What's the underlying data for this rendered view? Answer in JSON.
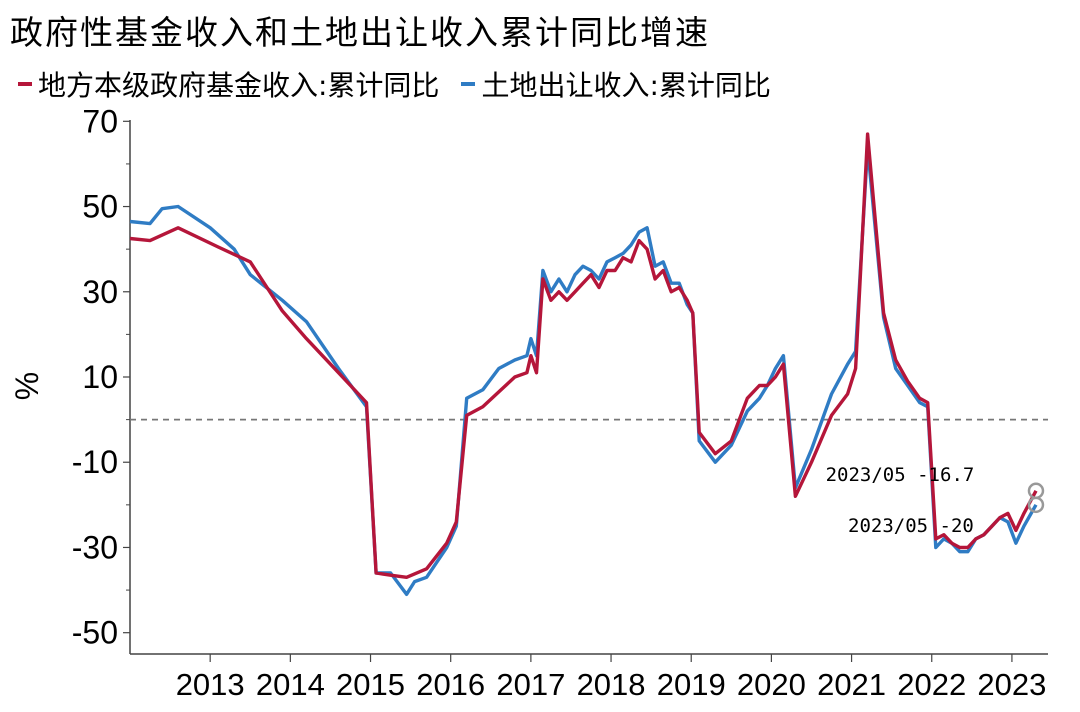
{
  "colors": {
    "local": "#b5163a",
    "land": "#2f7cc4"
  },
  "chart_data": {
    "type": "line",
    "title": "政府性基金收入和土地出让收入累计同比增速",
    "ylabel": "%",
    "xlabel": "",
    "ylim": [
      -55,
      75
    ],
    "yticks": [
      70,
      50,
      30,
      10,
      -10,
      -30,
      -50
    ],
    "xlim": [
      2012.0,
      2023.45
    ],
    "xticks": [
      "2013",
      "2014",
      "2015",
      "2016",
      "2017",
      "2018",
      "2019",
      "2020",
      "2021",
      "2022",
      "2023"
    ],
    "reference_line": 0,
    "legend": "top",
    "series": [
      {
        "name": "地方本级政府基金收入:累计同比",
        "color": "#b5163a",
        "x": [
          2012.0,
          2012.25,
          2012.6,
          2013.1,
          2013.5,
          2013.9,
          2014.2,
          2014.6,
          2014.95,
          2015.07,
          2015.25,
          2015.45,
          2015.7,
          2015.95,
          2016.07,
          2016.2,
          2016.4,
          2016.6,
          2016.8,
          2016.95,
          2017.0,
          2017.07,
          2017.15,
          2017.25,
          2017.35,
          2017.45,
          2017.55,
          2017.65,
          2017.75,
          2017.85,
          2017.95,
          2018.05,
          2018.15,
          2018.25,
          2018.35,
          2018.45,
          2018.55,
          2018.65,
          2018.75,
          2018.85,
          2018.95,
          2019.02,
          2019.1,
          2019.3,
          2019.5,
          2019.7,
          2019.85,
          2019.95,
          2020.05,
          2020.15,
          2020.3,
          2020.5,
          2020.75,
          2020.95,
          2021.05,
          2021.2,
          2021.4,
          2021.55,
          2021.7,
          2021.85,
          2021.95,
          2022.05,
          2022.15,
          2022.25,
          2022.35,
          2022.45,
          2022.55,
          2022.65,
          2022.75,
          2022.85,
          2022.95,
          2023.05,
          2023.15,
          2023.3
        ],
        "y": [
          42.5,
          42,
          45,
          40.5,
          37,
          25.5,
          19,
          11,
          4,
          -36,
          -36.5,
          -37,
          -35,
          -29,
          -24,
          1,
          3,
          6.5,
          10,
          11,
          15,
          11,
          33,
          28,
          30,
          28,
          30,
          32,
          34,
          31,
          35,
          35,
          38,
          37,
          42,
          40,
          33,
          35,
          30,
          31,
          28,
          25,
          -3,
          -8,
          -5,
          5,
          8,
          8,
          10,
          13,
          -18,
          -10,
          1,
          6,
          12,
          67,
          25,
          14,
          9,
          5,
          4,
          -28,
          -27,
          -29,
          -30,
          -30,
          -28,
          -27,
          -25,
          -23,
          -22,
          -26,
          -22,
          -16.7
        ]
      },
      {
        "name": "土地出让收入:累计同比",
        "color": "#2f7cc4",
        "x": [
          2012.0,
          2012.25,
          2012.4,
          2012.6,
          2013.0,
          2013.3,
          2013.5,
          2013.9,
          2014.2,
          2014.6,
          2014.95,
          2015.07,
          2015.25,
          2015.45,
          2015.55,
          2015.7,
          2015.95,
          2016.07,
          2016.2,
          2016.4,
          2016.6,
          2016.8,
          2016.95,
          2017.0,
          2017.07,
          2017.15,
          2017.25,
          2017.35,
          2017.45,
          2017.55,
          2017.65,
          2017.75,
          2017.85,
          2017.95,
          2018.05,
          2018.15,
          2018.25,
          2018.35,
          2018.45,
          2018.55,
          2018.65,
          2018.75,
          2018.85,
          2018.95,
          2019.02,
          2019.1,
          2019.3,
          2019.5,
          2019.7,
          2019.85,
          2019.95,
          2020.05,
          2020.15,
          2020.3,
          2020.5,
          2020.75,
          2020.95,
          2021.05,
          2021.2,
          2021.4,
          2021.55,
          2021.7,
          2021.85,
          2021.95,
          2022.05,
          2022.15,
          2022.25,
          2022.35,
          2022.45,
          2022.55,
          2022.65,
          2022.75,
          2022.85,
          2022.95,
          2023.05,
          2023.15,
          2023.3
        ],
        "y": [
          46.5,
          46,
          49.5,
          50,
          45,
          40,
          34,
          28,
          23,
          12,
          3,
          -36,
          -36,
          -41,
          -38,
          -37,
          -30,
          -25,
          5,
          7,
          12,
          14,
          15,
          19,
          15,
          35,
          30,
          33,
          30,
          34,
          36,
          35,
          33,
          37,
          38,
          39,
          41,
          44,
          45,
          36,
          37,
          32,
          32,
          27,
          25,
          -5,
          -10,
          -6,
          2,
          5,
          8,
          12,
          15,
          -16,
          -7,
          6,
          13,
          16,
          64,
          24,
          12,
          8,
          4,
          3,
          -30,
          -28,
          -29,
          -31,
          -31,
          -28,
          -27,
          -25,
          -23,
          -24,
          -29,
          -25,
          -20
        ]
      }
    ],
    "annotations": [
      {
        "date": "2023/05",
        "value": "-16.7",
        "x": 2023.3,
        "y": -16.7
      },
      {
        "date": "2023/05",
        "value": "-20",
        "x": 2023.3,
        "y": -20
      }
    ]
  }
}
